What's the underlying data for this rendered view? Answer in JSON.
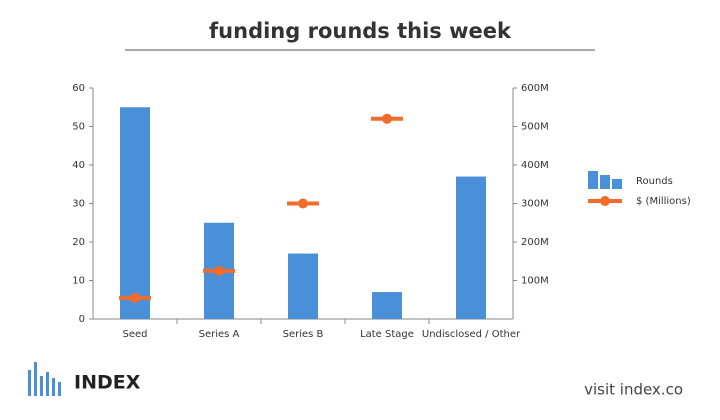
{
  "chart_data": {
    "type": "bar",
    "title": "funding rounds this week",
    "categories": [
      "Seed",
      "Series A",
      "Series B",
      "Late Stage",
      "Undisclosed / Other"
    ],
    "series": [
      {
        "name": "Rounds",
        "type": "bar",
        "color": "#4a90d9",
        "values": [
          55,
          25,
          17,
          7,
          37
        ]
      },
      {
        "name": "$ (Millions)",
        "type": "marker",
        "color": "#f26b2a",
        "axis": "y2",
        "values": [
          55,
          125,
          300,
          520,
          null
        ]
      }
    ],
    "ylim": [
      0,
      60
    ],
    "yticks": [
      0,
      10,
      20,
      30,
      40,
      50,
      60
    ],
    "y2lim": [
      0,
      600
    ],
    "y2ticks": [
      {
        "value": 100,
        "label": "100M"
      },
      {
        "value": 200,
        "label": "200M"
      },
      {
        "value": 300,
        "label": "300M"
      },
      {
        "value": 400,
        "label": "400M"
      },
      {
        "value": 500,
        "label": "500M"
      },
      {
        "value": 600,
        "label": "600M"
      }
    ],
    "legend": "right"
  },
  "footer": {
    "logo": "INDEX",
    "link": "visit index.co"
  }
}
